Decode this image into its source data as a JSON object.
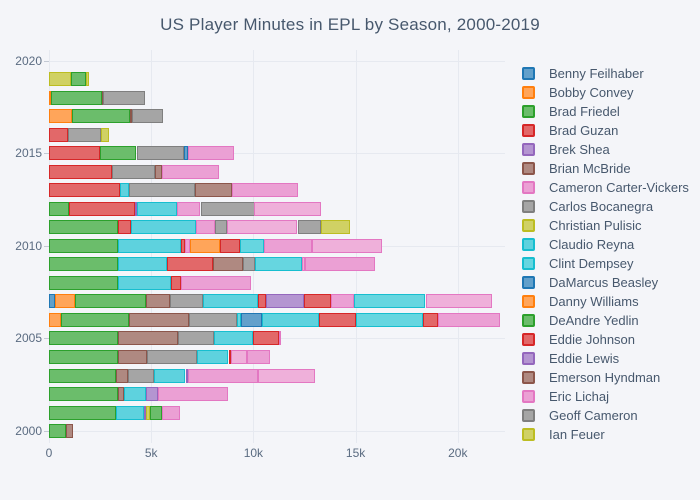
{
  "title": "US Player Minutes in EPL by Season, 2000-2019",
  "colors": {
    "blue": {
      "fill": "#62a0cb",
      "line": "#1f77b4"
    },
    "orange": {
      "fill": "#ffa55a",
      "line": "#ff7f0e"
    },
    "green": {
      "fill": "#6bbd6b",
      "line": "#2ca02c"
    },
    "red": {
      "fill": "#e26869",
      "line": "#d62728"
    },
    "purple": {
      "fill": "#b495d1",
      "line": "#9467bd"
    },
    "brown": {
      "fill": "#af8981",
      "line": "#8c564b"
    },
    "pink": {
      "fill": "#eba0d4",
      "line": "#e377c2"
    },
    "pink2": {
      "fill": "#efb0da",
      "line": "#e377c2"
    },
    "gray": {
      "fill": "#a5a5a5",
      "line": "#7f7f7f"
    },
    "olive": {
      "fill": "#d0d164",
      "line": "#bcbd22"
    },
    "cyan": {
      "fill": "#5ed2de",
      "line": "#17becf"
    },
    "cyan2": {
      "fill": "#66d6e0",
      "line": "#17becf"
    }
  },
  "legend": {
    "items": [
      {
        "label": "Benny Feilhaber",
        "color": "blue"
      },
      {
        "label": "Bobby Convey",
        "color": "orange"
      },
      {
        "label": "Brad Friedel",
        "color": "green"
      },
      {
        "label": "Brad Guzan",
        "color": "red"
      },
      {
        "label": "Brek Shea",
        "color": "purple"
      },
      {
        "label": "Brian McBride",
        "color": "brown"
      },
      {
        "label": "Cameron Carter-Vickers",
        "color": "pink"
      },
      {
        "label": "Carlos Bocanegra",
        "color": "gray"
      },
      {
        "label": "Christian Pulisic",
        "color": "olive"
      },
      {
        "label": "Claudio Reyna",
        "color": "cyan"
      },
      {
        "label": "Clint Dempsey",
        "color": "cyan2"
      },
      {
        "label": "DaMarcus Beasley",
        "color": "blue"
      },
      {
        "label": "Danny Williams",
        "color": "orange"
      },
      {
        "label": "DeAndre Yedlin",
        "color": "green"
      },
      {
        "label": "Eddie Johnson",
        "color": "red"
      },
      {
        "label": "Eddie Lewis",
        "color": "purple"
      },
      {
        "label": "Emerson Hyndman",
        "color": "brown"
      },
      {
        "label": "Eric Lichaj",
        "color": "pink"
      },
      {
        "label": "Geoff Cameron",
        "color": "gray"
      },
      {
        "label": "Ian Feuer",
        "color": "olive"
      }
    ]
  },
  "chart_data": {
    "type": "bar",
    "orientation": "horizontal-stacked",
    "title": "US Player Minutes in EPL by Season, 2000-2019",
    "x_axis": {
      "ticks": [
        {
          "label": "0",
          "value": 0
        },
        {
          "label": "5k",
          "value": 5
        },
        {
          "label": "10k",
          "value": 10
        },
        {
          "label": "15k",
          "value": 15
        },
        {
          "label": "20k",
          "value": 20
        }
      ],
      "max_k": 22.31,
      "units": "minutes (thousands)"
    },
    "y_axis": {
      "ticks": [
        2000,
        2005,
        2010,
        2015,
        2020
      ]
    },
    "legend_position": "right",
    "seasons": [
      {
        "year": 2000,
        "total_k": 1.19,
        "segments": [
          [
            "green",
            0.83
          ],
          [
            "brown",
            0.36
          ]
        ]
      },
      {
        "year": 2001,
        "total_k": 6.39,
        "segments": [
          [
            "green",
            3.27
          ],
          [
            "cyan",
            1.36
          ],
          [
            "purple",
            0.13
          ],
          [
            "olive",
            0.17
          ],
          [
            "green",
            0.61
          ],
          [
            "pink",
            0.85
          ]
        ]
      },
      {
        "year": 2002,
        "total_k": 8.75,
        "segments": [
          [
            "green",
            3.35
          ],
          [
            "brown",
            0.32
          ],
          [
            "cyan",
            1.06
          ],
          [
            "purple",
            0.6
          ],
          [
            "pink",
            3.42
          ]
        ]
      },
      {
        "year": 2003,
        "total_k": 13.01,
        "segments": [
          [
            "green",
            3.27
          ],
          [
            "brown",
            0.6
          ],
          [
            "gray",
            1.25
          ],
          [
            "cyan",
            1.56
          ],
          [
            "purple",
            0.12
          ],
          [
            "pink",
            3.41
          ],
          [
            "pink2",
            2.8
          ]
        ]
      },
      {
        "year": 2004,
        "total_k": 10.82,
        "segments": [
          [
            "green",
            3.36
          ],
          [
            "brown",
            1.42
          ],
          [
            "gray",
            2.48
          ],
          [
            "cyan",
            1.52
          ],
          [
            "red",
            0.12
          ],
          [
            "pink2",
            0.78
          ],
          [
            "pink",
            1.14
          ]
        ]
      },
      {
        "year": 2005,
        "total_k": 11.34,
        "segments": [
          [
            "green",
            3.36
          ],
          [
            "brown",
            2.97
          ],
          [
            "gray",
            1.76
          ],
          [
            "cyan",
            1.91
          ],
          [
            "red",
            1.27
          ],
          [
            "pink",
            0.07
          ]
        ]
      },
      {
        "year": 2006,
        "total_k": 22.08,
        "segments": [
          [
            "orange",
            0.57
          ],
          [
            "green",
            3.35
          ],
          [
            "brown",
            2.92
          ],
          [
            "gray",
            2.35
          ],
          [
            "cyan2",
            0.21
          ],
          [
            "blue",
            1.02
          ],
          [
            "cyan",
            2.8
          ],
          [
            "red",
            1.79
          ],
          [
            "cyan2",
            3.28
          ],
          [
            "red",
            0.73
          ],
          [
            "pink",
            3.06
          ]
        ]
      },
      {
        "year": 2007,
        "total_k": 21.67,
        "segments": [
          [
            "blue",
            0.29
          ],
          [
            "orange",
            0.98
          ],
          [
            "green",
            3.46
          ],
          [
            "brown",
            1.21
          ],
          [
            "gray",
            1.59
          ],
          [
            "cyan",
            2.68
          ],
          [
            "red",
            0.41
          ],
          [
            "purple",
            1.87
          ],
          [
            "red",
            1.3
          ],
          [
            "pink",
            1.14
          ],
          [
            "cyan2",
            3.49
          ],
          [
            "pink2",
            3.25
          ]
        ]
      },
      {
        "year": 2008,
        "total_k": 9.89,
        "segments": [
          [
            "green",
            3.35
          ],
          [
            "cyan",
            2.63
          ],
          [
            "red",
            0.49
          ],
          [
            "pink",
            3.42
          ]
        ]
      },
      {
        "year": 2009,
        "total_k": 15.94,
        "segments": [
          [
            "green",
            3.35
          ],
          [
            "cyan",
            2.44
          ],
          [
            "red",
            2.23
          ],
          [
            "brown",
            1.49
          ],
          [
            "gray",
            0.59
          ],
          [
            "cyan2",
            2.28
          ],
          [
            "pink2",
            0.12
          ],
          [
            "pink",
            3.44
          ]
        ]
      },
      {
        "year": 2010,
        "total_k": 16.28,
        "segments": [
          [
            "green",
            3.35
          ],
          [
            "cyan",
            3.1
          ],
          [
            "red",
            0.2
          ],
          [
            "pink",
            0.25
          ],
          [
            "orange",
            1.48
          ],
          [
            "red",
            0.96
          ],
          [
            "cyan2",
            1.19
          ],
          [
            "pink",
            2.35
          ],
          [
            "pink2",
            3.4
          ]
        ]
      },
      {
        "year": 2011,
        "total_k": 14.72,
        "segments": [
          [
            "green",
            3.35
          ],
          [
            "red",
            0.68
          ],
          [
            "cyan",
            3.17
          ],
          [
            "pink",
            0.9
          ],
          [
            "gray",
            0.6
          ],
          [
            "pink2",
            3.46
          ],
          [
            "gray",
            1.14
          ],
          [
            "olive",
            1.42
          ]
        ]
      },
      {
        "year": 2012,
        "total_k": 13.3,
        "segments": [
          [
            "green",
            0.99
          ],
          [
            "red",
            3.21
          ],
          [
            "purple",
            0.11
          ],
          [
            "cyan",
            1.97
          ],
          [
            "pink",
            1.13
          ],
          [
            "gray",
            2.64
          ],
          [
            "pink2",
            3.25
          ]
        ]
      },
      {
        "year": 2013,
        "total_k": 12.18,
        "segments": [
          [
            "red",
            3.46
          ],
          [
            "cyan",
            0.46
          ],
          [
            "gray",
            3.24
          ],
          [
            "brown",
            1.8
          ],
          [
            "pink",
            3.22
          ]
        ]
      },
      {
        "year": 2014,
        "total_k": 8.34,
        "segments": [
          [
            "red",
            3.06
          ],
          [
            "gray",
            2.11
          ],
          [
            "brown",
            0.36
          ],
          [
            "pink",
            2.81
          ]
        ]
      },
      {
        "year": 2015,
        "total_k": 9.07,
        "segments": [
          [
            "red",
            2.49
          ],
          [
            "green",
            1.79
          ],
          [
            "gray",
            2.34
          ],
          [
            "blue",
            0.18
          ],
          [
            "pink",
            2.27
          ]
        ]
      },
      {
        "year": 2016,
        "total_k": 2.91,
        "segments": [
          [
            "red",
            0.93
          ],
          [
            "gray",
            1.59
          ],
          [
            "olive",
            0.39
          ]
        ]
      },
      {
        "year": 2017,
        "total_k": 5.56,
        "segments": [
          [
            "orange",
            1.13
          ],
          [
            "green",
            2.83
          ],
          [
            "brown",
            0.12
          ],
          [
            "gray",
            1.48
          ]
        ]
      },
      {
        "year": 2018,
        "total_k": 4.7,
        "segments": [
          [
            "orange",
            0.1
          ],
          [
            "green",
            2.48
          ],
          [
            "brown",
            0.08
          ],
          [
            "gray",
            2.04
          ]
        ]
      },
      {
        "year": 2019,
        "total_k": 1.96,
        "segments": [
          [
            "olive",
            1.08
          ],
          [
            "green",
            0.73
          ],
          [
            "olive",
            0.15
          ]
        ]
      }
    ]
  }
}
